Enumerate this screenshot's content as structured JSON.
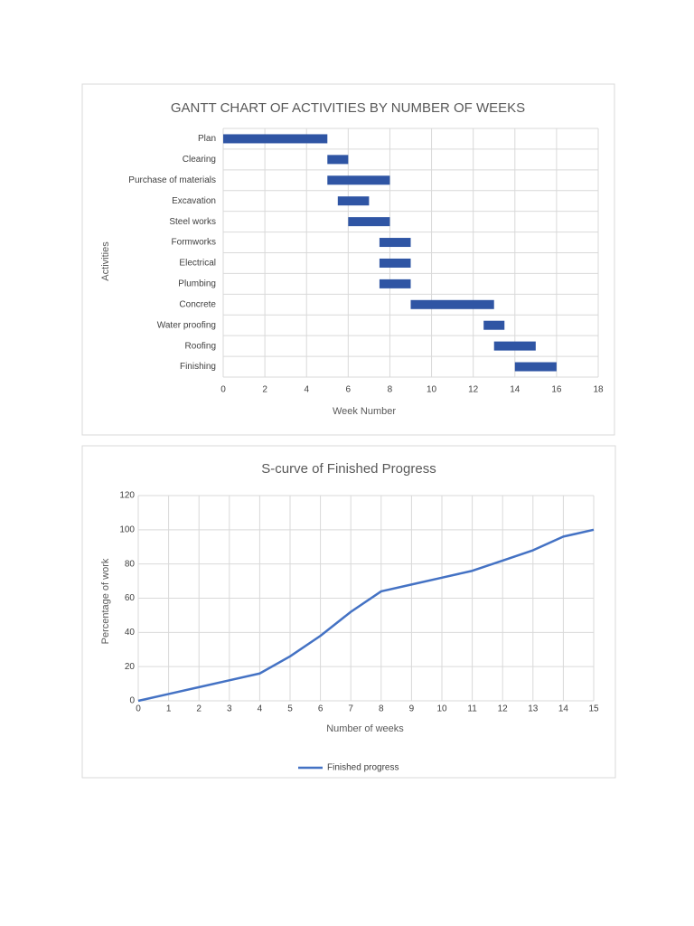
{
  "chart_data": [
    {
      "type": "gantt",
      "title": "GANTT CHART OF ACTIVITIES BY NUMBER OF WEEKS",
      "xlabel": "Week Number",
      "ylabel": "Activities",
      "categories": [
        "Plan",
        "Clearing",
        "Purchase of materials",
        "Excavation",
        "Steel works",
        "Formworks",
        "Electrical",
        "Plumbing",
        "Concrete",
        "Water proofing",
        "Roofing",
        "Finishing"
      ],
      "start": [
        0,
        5,
        5,
        5.5,
        6,
        7.5,
        7.5,
        7.5,
        9,
        12.5,
        13,
        14
      ],
      "end": [
        5,
        6,
        8,
        7,
        8,
        9,
        9,
        9,
        13,
        13.5,
        15,
        16
      ],
      "color": "#2f55a4",
      "xlim": [
        0,
        18
      ],
      "xticks": [
        0,
        2,
        4,
        6,
        8,
        10,
        12,
        14,
        16,
        18
      ],
      "grid": true
    },
    {
      "type": "line",
      "title": "S-curve of Finished Progress",
      "xlabel": "Number of weeks",
      "ylabel": "Percentage of work",
      "x": [
        0,
        1,
        2,
        3,
        4,
        5,
        6,
        7,
        8,
        9,
        10,
        11,
        12,
        13,
        14,
        15
      ],
      "series": [
        {
          "name": "Finished progress",
          "color": "#4472c4",
          "values": [
            0,
            4,
            8,
            12,
            16,
            26,
            38,
            52,
            64,
            68,
            72,
            76,
            82,
            88,
            96,
            100
          ]
        }
      ],
      "xlim": [
        0,
        15
      ],
      "xticks": [
        0,
        1,
        2,
        3,
        4,
        5,
        6,
        7,
        8,
        9,
        10,
        11,
        12,
        13,
        14,
        15
      ],
      "ylim": [
        0,
        120
      ],
      "yticks": [
        0,
        20,
        40,
        60,
        80,
        100,
        120
      ],
      "grid": true,
      "legend": "bottom"
    }
  ]
}
